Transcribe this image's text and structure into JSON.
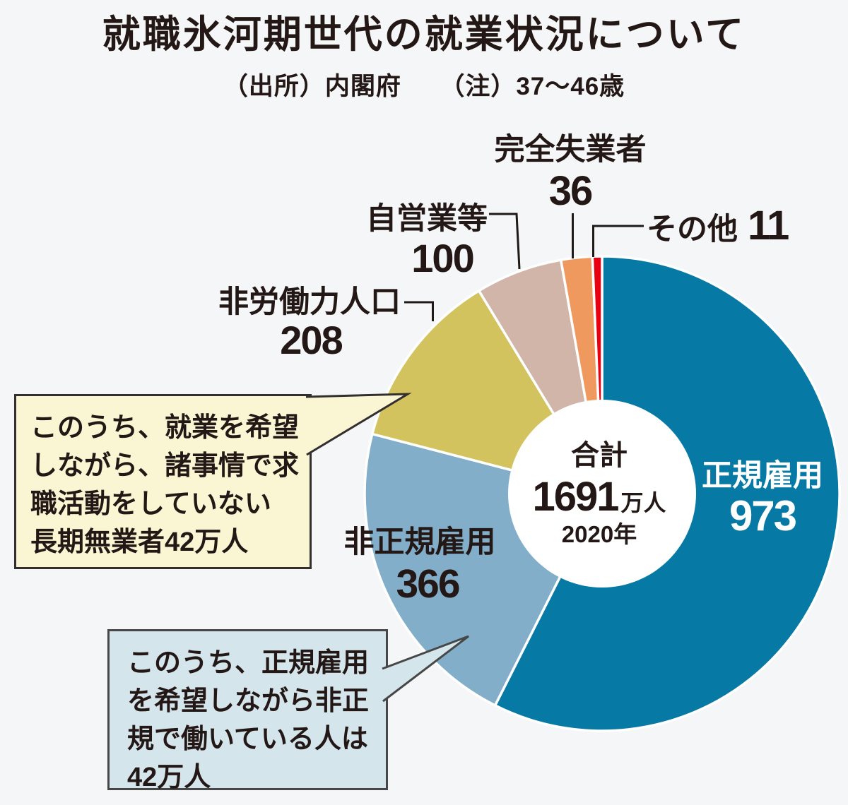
{
  "header": {
    "title": "就職氷河期世代の就業状況について",
    "note": "（出所）内閣府　　（注）37～46歳"
  },
  "chart_data": {
    "type": "pie",
    "title": "就職氷河期世代の就業状況について",
    "source": "（出所）内閣府",
    "note": "（注）37～46歳",
    "unit": "万人",
    "year": "2020年",
    "total": {
      "label": "合計",
      "value": "1691",
      "unit": "万人",
      "year": "2020年"
    },
    "start_angle_deg": 0,
    "direction": "clockwise",
    "donut": true,
    "segments": [
      {
        "id": "regular-employment",
        "label": "正規雇用",
        "value": 973,
        "color": "#0679a4",
        "label_color": "#ffffff"
      },
      {
        "id": "non-regular-employment",
        "label": "非正規雇用",
        "value": 366,
        "color": "#82aec9",
        "label_color": "#231815"
      },
      {
        "id": "not-in-labor-force",
        "label": "非労働力人口",
        "value": 208,
        "color": "#d3c35f",
        "label_color": "#231815"
      },
      {
        "id": "self-employed",
        "label": "自営業等",
        "value": 100,
        "color": "#d2b5a9",
        "label_color": "#231815"
      },
      {
        "id": "unemployed",
        "label": "完全失業者",
        "value": 36,
        "color": "#f0995f",
        "label_color": "#231815"
      },
      {
        "id": "other",
        "label": "その他",
        "value": 11,
        "color": "#e60012",
        "label_color": "#231815"
      }
    ]
  },
  "callouts": {
    "not_in_labor_force_note": {
      "text": "このうち、就業を希望\nしながら、諸事情で求\n職活動をしていない\n長期無業者42万人",
      "fill": "#faf5d2",
      "border": "#332f2e"
    },
    "non_regular_note": {
      "text": "このうち、正規雇用\nを希望しながら非正\n規で働いている人は\n42万人",
      "fill": "#d4e6ec",
      "border": "#474747"
    }
  },
  "colors": {
    "background": "#f5f6f8",
    "text": "#231815",
    "separator": "#ffffff",
    "hole": "#ffffff",
    "leader_line": "#1f1a17"
  }
}
